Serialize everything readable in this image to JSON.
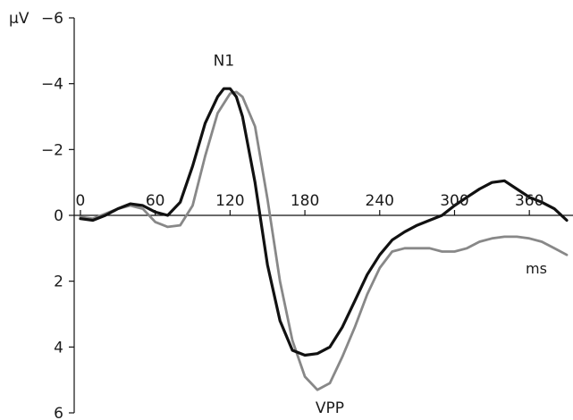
{
  "chart_data": {
    "type": "line",
    "xlabel": "ms",
    "ylabel": "μV",
    "xlim": [
      -5,
      395
    ],
    "ylim": [
      -6,
      6
    ],
    "y_inverted": true,
    "grid": false,
    "x_ticks": [
      0,
      60,
      120,
      180,
      240,
      300,
      360
    ],
    "x_tick_labels": [
      "0",
      "60",
      "120",
      "180",
      "240",
      "300",
      "360"
    ],
    "y_ticks": [
      -6,
      -4,
      -2,
      0,
      2,
      4,
      6
    ],
    "y_tick_labels": [
      "−6",
      "−4",
      "−2",
      "0",
      "2",
      "4",
      "6"
    ],
    "annotations": [
      {
        "text": "N1",
        "x": 115,
        "y": -4.55
      },
      {
        "text": "VPP",
        "x": 200,
        "y": 6.0
      }
    ],
    "series": [
      {
        "color": "#111111",
        "x": [
          0,
          10,
          20,
          30,
          40,
          50,
          60,
          70,
          80,
          90,
          100,
          110,
          115,
          120,
          125,
          130,
          140,
          150,
          160,
          170,
          180,
          190,
          200,
          210,
          220,
          230,
          240,
          250,
          260,
          270,
          280,
          290,
          300,
          310,
          320,
          330,
          340,
          350,
          360,
          370,
          380,
          390
        ],
        "y": [
          0.1,
          0.15,
          0.0,
          -0.2,
          -0.35,
          -0.3,
          -0.1,
          0.0,
          -0.4,
          -1.5,
          -2.8,
          -3.6,
          -3.85,
          -3.85,
          -3.6,
          -3.0,
          -1.0,
          1.5,
          3.2,
          4.1,
          4.25,
          4.2,
          4.0,
          3.4,
          2.6,
          1.8,
          1.2,
          0.75,
          0.5,
          0.3,
          0.15,
          0.0,
          -0.3,
          -0.55,
          -0.8,
          -1.0,
          -1.05,
          -0.8,
          -0.55,
          -0.4,
          -0.2,
          0.15
        ]
      },
      {
        "color": "#888888",
        "x": [
          0,
          10,
          20,
          30,
          40,
          50,
          60,
          70,
          80,
          90,
          100,
          110,
          120,
          125,
          130,
          140,
          150,
          160,
          170,
          180,
          190,
          200,
          210,
          220,
          230,
          240,
          250,
          260,
          270,
          280,
          290,
          300,
          310,
          320,
          330,
          340,
          350,
          360,
          370,
          380,
          390
        ],
        "y": [
          0.05,
          0.1,
          -0.05,
          -0.2,
          -0.3,
          -0.2,
          0.2,
          0.35,
          0.3,
          -0.3,
          -1.8,
          -3.1,
          -3.7,
          -3.75,
          -3.6,
          -2.7,
          -0.5,
          2.0,
          3.8,
          4.9,
          5.3,
          5.1,
          4.3,
          3.4,
          2.4,
          1.6,
          1.1,
          1.0,
          1.0,
          1.0,
          1.1,
          1.1,
          1.0,
          0.8,
          0.7,
          0.65,
          0.65,
          0.7,
          0.8,
          1.0,
          1.2
        ]
      }
    ]
  }
}
